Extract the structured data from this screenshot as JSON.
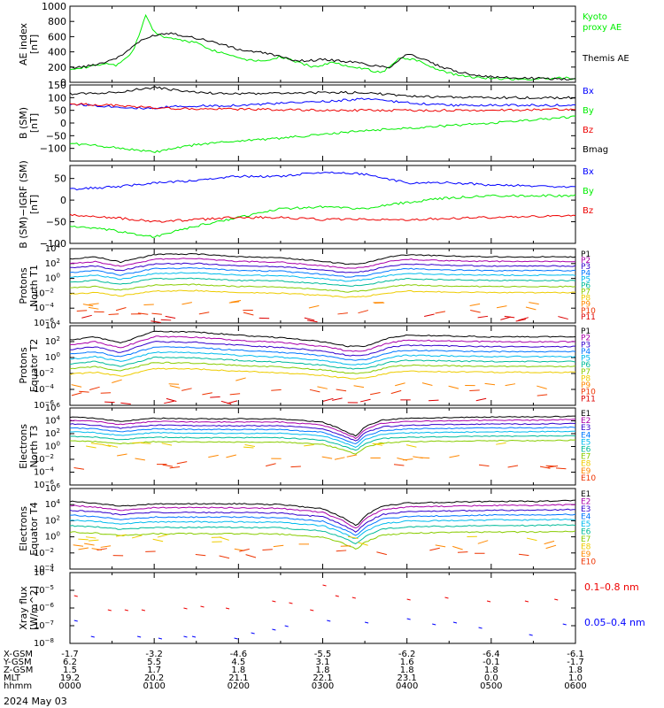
{
  "time_axis": {
    "hours": [
      0,
      1,
      2,
      3,
      4,
      5,
      6
    ],
    "rows": [
      {
        "label": "X-GSM",
        "values": [
          "-1.7",
          "-3.2",
          "-4.6",
          "-5.5",
          "-6.2",
          "-6.4",
          "-6.1"
        ]
      },
      {
        "label": "Y-GSM",
        "values": [
          "6.2",
          "5.5",
          "4.5",
          "3.1",
          "1.6",
          "-0.1",
          "-1.7"
        ]
      },
      {
        "label": "Z-GSM",
        "values": [
          "1.5",
          "1.7",
          "1.8",
          "1.8",
          "1.8",
          "1.8",
          "1.8"
        ]
      },
      {
        "label": "MLT",
        "values": [
          "19.2",
          "20.2",
          "21.1",
          "22.1",
          "23.1",
          "0.0",
          "1.0"
        ]
      },
      {
        "label": "hhmm",
        "values": [
          "0000",
          "0100",
          "0200",
          "0300",
          "0400",
          "0500",
          "0600"
        ]
      }
    ],
    "date": "2024 May 03"
  },
  "colors": {
    "black": "#000000",
    "blue": "#0000ff",
    "green": "#00ee00",
    "red": "#ee0000",
    "P1": "#000000",
    "P2": "#aa00aa",
    "P3": "#3300cc",
    "P4": "#0077ff",
    "P5": "#00bbee",
    "P6": "#00bb99",
    "P7": "#88cc00",
    "P8": "#eecc00",
    "P9": "#ff8800",
    "P10": "#ee3300",
    "P11": "#dd0000"
  },
  "chart_data": [
    {
      "type": "line",
      "ylabel": [
        "AE index",
        "[nT]"
      ],
      "ylim": [
        0,
        1000
      ],
      "yticks": [
        0,
        200,
        400,
        600,
        800,
        1000
      ],
      "yticklabels": [
        "0",
        "200",
        "400",
        "600",
        "800",
        "1000"
      ],
      "log": false,
      "series": [
        {
          "name": "Kyoto proxy AE",
          "label_lines": [
            "Kyoto",
            "proxy AE"
          ],
          "color": "#00ee00",
          "x": [
            0,
            0.2,
            0.4,
            0.55,
            0.75,
            0.9,
            1.0,
            1.1,
            1.3,
            1.5,
            1.7,
            1.9,
            2.1,
            2.3,
            2.5,
            2.7,
            2.9,
            3.1,
            3.3,
            3.5,
            3.7,
            3.9,
            4.1,
            4.3,
            4.5,
            4.7,
            4.9,
            5.1,
            5.3,
            5.5,
            5.7,
            5.9,
            6.0
          ],
          "y": [
            180,
            200,
            240,
            220,
            400,
            880,
            660,
            600,
            560,
            520,
            420,
            360,
            300,
            280,
            340,
            260,
            200,
            260,
            220,
            180,
            120,
            320,
            300,
            200,
            120,
            80,
            60,
            50,
            40,
            40,
            50,
            60,
            40
          ]
        },
        {
          "name": "Themis AE",
          "label_lines": [
            "Themis AE"
          ],
          "color": "#000000",
          "x": [
            0,
            0.2,
            0.4,
            0.6,
            0.8,
            1.0,
            1.2,
            1.4,
            1.6,
            1.8,
            2.0,
            2.2,
            2.4,
            2.6,
            2.8,
            3.0,
            3.2,
            3.4,
            3.6,
            3.8,
            4.0,
            4.2,
            4.4,
            4.6,
            4.8,
            5.0,
            5.2,
            5.4,
            5.6,
            5.8,
            6.0
          ],
          "y": [
            190,
            210,
            260,
            340,
            520,
            620,
            650,
            600,
            560,
            500,
            430,
            400,
            370,
            300,
            280,
            300,
            280,
            260,
            220,
            200,
            380,
            300,
            200,
            140,
            100,
            70,
            60,
            55,
            50,
            45,
            40
          ]
        }
      ]
    },
    {
      "type": "line",
      "ylabel": [
        "B (SM)",
        "[nT]"
      ],
      "ylim": [
        -150,
        150
      ],
      "yticks": [
        -100,
        -50,
        0,
        50,
        100,
        150
      ],
      "yticklabels": [
        "−100",
        "−50",
        "0",
        "50",
        "100",
        "150"
      ],
      "log": false,
      "series": [
        {
          "name": "Bx",
          "color": "#0000ff",
          "x": [
            0,
            1,
            1.2,
            2,
            3,
            3.5,
            4,
            4.5,
            5,
            6
          ],
          "y": [
            75,
            55,
            65,
            70,
            85,
            95,
            80,
            70,
            70,
            70
          ]
        },
        {
          "name": "By",
          "color": "#00ee00",
          "x": [
            0,
            0.5,
            1,
            1.5,
            2,
            2.5,
            3,
            3.5,
            4,
            5,
            6
          ],
          "y": [
            -80,
            -95,
            -115,
            -85,
            -70,
            -60,
            -45,
            -30,
            -20,
            0,
            25
          ]
        },
        {
          "name": "Bz",
          "color": "#ee0000",
          "x": [
            0,
            0.5,
            1,
            1.5,
            2,
            3,
            4,
            5,
            6
          ],
          "y": [
            75,
            70,
            60,
            55,
            55,
            50,
            50,
            50,
            55
          ]
        },
        {
          "name": "Bmag",
          "color": "#000000",
          "x": [
            0,
            0.5,
            1,
            1.5,
            2,
            3,
            3.5,
            4,
            5,
            6
          ],
          "y": [
            115,
            120,
            140,
            120,
            115,
            120,
            120,
            105,
            100,
            100
          ]
        }
      ]
    },
    {
      "type": "line",
      "ylabel": [
        "B (SM)−IGRF (SM)",
        "[nT]"
      ],
      "ylim": [
        -100,
        80
      ],
      "yticks": [
        -100,
        -50,
        0,
        50
      ],
      "yticklabels": [
        "−100",
        "−50",
        "0",
        "50"
      ],
      "log": false,
      "series": [
        {
          "name": "Bx",
          "color": "#0000ff",
          "x": [
            0,
            0.5,
            1,
            1.5,
            2,
            2.5,
            3,
            3.5,
            4,
            4.5,
            5,
            6
          ],
          "y": [
            25,
            30,
            40,
            45,
            55,
            55,
            65,
            60,
            40,
            40,
            35,
            30
          ]
        },
        {
          "name": "By",
          "color": "#00ee00",
          "x": [
            0,
            0.5,
            1,
            1.5,
            2,
            2.5,
            3,
            3.5,
            4,
            4.5,
            5,
            6
          ],
          "y": [
            -60,
            -70,
            -85,
            -60,
            -40,
            -20,
            -15,
            -20,
            -5,
            5,
            10,
            10
          ]
        },
        {
          "name": "Bz",
          "color": "#ee0000",
          "x": [
            0,
            0.5,
            1,
            1.5,
            2,
            2.5,
            3,
            3.5,
            4,
            5,
            6
          ],
          "y": [
            -35,
            -40,
            -50,
            -45,
            -40,
            -40,
            -45,
            -45,
            -45,
            -40,
            -35
          ]
        }
      ]
    },
    {
      "type": "line",
      "ylabel": [
        "Protons",
        "North T1"
      ],
      "ylim": [
        -6,
        4
      ],
      "yticks": [
        -6,
        -4,
        -2,
        0,
        2,
        4
      ],
      "log": true,
      "channels": [
        "P1",
        "P2",
        "P3",
        "P4",
        "P5",
        "P6",
        "P7",
        "P8",
        "P9",
        "P10",
        "P11"
      ],
      "profile": {
        "x": [
          0,
          0.3,
          0.6,
          1.0,
          1.5,
          2.0,
          2.5,
          3.0,
          3.3,
          3.5,
          3.8,
          4.0,
          4.5,
          5.0,
          5.5,
          6.0
        ],
        "offset": [
          0,
          0.3,
          -0.4,
          0.6,
          0.7,
          0.3,
          0.2,
          -0.3,
          -0.7,
          -0.5,
          0.3,
          0.6,
          0.4,
          0.3,
          0.3,
          0.3
        ]
      },
      "bases": [
        2.6,
        2.0,
        1.4,
        0.8,
        0.2,
        -0.5,
        -1.3,
        -2.1,
        -3.6,
        -4.6,
        -5.4
      ]
    },
    {
      "type": "line",
      "ylabel": [
        "Protons",
        "Equator T2"
      ],
      "ylim": [
        -6,
        4
      ],
      "yticks": [
        -6,
        -4,
        -2,
        0,
        2,
        4
      ],
      "log": true,
      "channels": [
        "P1",
        "P2",
        "P3",
        "P4",
        "P5",
        "P6",
        "P7",
        "P8",
        "P9",
        "P10",
        "P11"
      ],
      "profile": {
        "x": [
          0,
          0.3,
          0.6,
          1.0,
          1.5,
          2.0,
          2.5,
          3.0,
          3.3,
          3.5,
          3.8,
          4.0,
          4.5,
          5.0,
          5.5,
          6.0
        ],
        "offset": [
          0,
          0.4,
          -0.4,
          1.1,
          1.0,
          0.6,
          0.3,
          -0.2,
          -0.8,
          -0.8,
          0.3,
          0.6,
          0.5,
          0.4,
          0.4,
          0.4
        ]
      },
      "bases": [
        2.2,
        1.6,
        1.0,
        0.4,
        -0.2,
        -0.8,
        -1.4,
        -2.1,
        -3.3,
        -4.4,
        -5.4
      ]
    },
    {
      "type": "line",
      "ylabel": [
        "Electrons",
        "North T3"
      ],
      "ylim": [
        -6,
        6
      ],
      "yticks": [
        -6,
        -4,
        -2,
        0,
        2,
        4,
        6
      ],
      "log": true,
      "channels": [
        "E1",
        "E2",
        "E3",
        "E4",
        "E5",
        "E6",
        "E7",
        "E8",
        "E9",
        "E10"
      ],
      "profile": {
        "x": [
          0,
          0.3,
          0.6,
          1.0,
          1.5,
          2.0,
          2.5,
          3.0,
          3.2,
          3.4,
          3.5,
          3.7,
          4.0,
          4.5,
          5.0,
          5.5,
          6.0
        ],
        "offset": [
          0,
          -0.2,
          -0.7,
          -0.2,
          -0.3,
          -0.3,
          -0.3,
          -0.8,
          -1.8,
          -3.0,
          -1.5,
          -0.5,
          -0.2,
          -0.1,
          0,
          0,
          0.1
        ]
      },
      "bases": [
        4.6,
        4.1,
        3.5,
        2.9,
        2.3,
        1.6,
        0.9,
        0.2,
        -1.8,
        -3.0
      ]
    },
    {
      "type": "line",
      "ylabel": [
        "Electrons",
        "Equator T4"
      ],
      "ylim": [
        -4,
        6
      ],
      "yticks": [
        -4,
        -2,
        0,
        2,
        4,
        6
      ],
      "log": true,
      "channels": [
        "E1",
        "E2",
        "E3",
        "E4",
        "E5",
        "E6",
        "E7",
        "E8",
        "E9",
        "E10"
      ],
      "profile": {
        "x": [
          0,
          0.3,
          0.6,
          1.0,
          1.5,
          2.0,
          2.5,
          3.0,
          3.2,
          3.4,
          3.5,
          3.7,
          4.0,
          4.5,
          5.0,
          5.5,
          6.0
        ],
        "offset": [
          0,
          -0.2,
          -0.6,
          -0.3,
          -0.3,
          -0.3,
          -0.4,
          -0.9,
          -1.8,
          -3.0,
          -1.8,
          -0.6,
          -0.2,
          -0.1,
          0,
          0,
          0.1
        ]
      },
      "bases": [
        4.4,
        3.9,
        3.3,
        2.7,
        2.1,
        1.4,
        0.6,
        -0.3,
        -1.2,
        -2.0
      ]
    },
    {
      "type": "scatter",
      "ylabel": [
        "Xray flux",
        "[W/m^2]"
      ],
      "ylim": [
        -8,
        -4
      ],
      "yticks": [
        -8,
        -7,
        -6,
        -5,
        -4
      ],
      "log": true,
      "series": [
        {
          "name": "0.1–0.8 nm",
          "color": "#ee0000",
          "x": [
            0.05,
            0.45,
            0.65,
            0.85,
            1.35,
            1.55,
            1.85,
            2.4,
            2.6,
            2.85,
            3.0,
            3.15,
            3.35,
            4.0,
            4.45,
            4.95,
            5.4,
            5.75
          ],
          "y": [
            -5.3,
            -6.1,
            -6.1,
            -6.1,
            -6.0,
            -5.9,
            -6.0,
            -5.6,
            -5.7,
            -6.1,
            -4.7,
            -5.3,
            -5.4,
            -5.5,
            -5.4,
            -5.6,
            -5.6,
            -5.5
          ]
        },
        {
          "name": "0.05–0.4 nm",
          "color": "#0000ff",
          "x": [
            0.05,
            0.25,
            0.8,
            1.05,
            1.35,
            1.45,
            1.95,
            2.15,
            2.4,
            2.55,
            3.05,
            3.5,
            4.0,
            4.3,
            4.55,
            4.85,
            5.45,
            5.85
          ],
          "y": [
            -6.7,
            -7.6,
            -7.6,
            -7.7,
            -7.6,
            -7.6,
            -7.7,
            -7.4,
            -7.2,
            -7.0,
            -6.7,
            -6.8,
            -6.6,
            -6.9,
            -6.8,
            -7.1,
            -7.5,
            -6.9
          ]
        }
      ]
    }
  ]
}
